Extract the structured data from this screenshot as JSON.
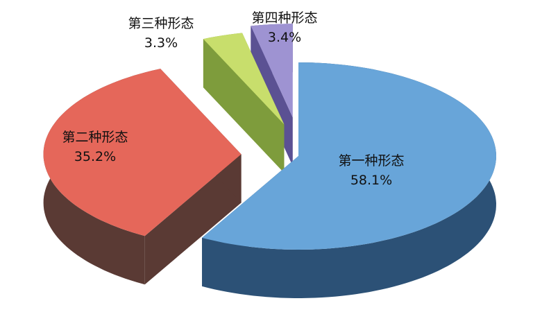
{
  "chart_data": {
    "type": "pie",
    "style": "3d-exploded",
    "slices": [
      {
        "name": "第一种形态",
        "value": 58.1,
        "label": "58.1%",
        "color": "#68a5d9",
        "side_color": "#2c5176"
      },
      {
        "name": "第二种形态",
        "value": 35.2,
        "label": "35.2%",
        "color": "#e5675a",
        "side_color": "#5a3a34"
      },
      {
        "name": "第三种形态",
        "value": 3.3,
        "label": "3.3%",
        "color": "#c8de6c",
        "side_color": "#7e9c3c"
      },
      {
        "name": "第四种形态",
        "value": 3.4,
        "label": "3.4%",
        "color": "#9e93d2",
        "side_color": "#5b5193"
      }
    ]
  }
}
